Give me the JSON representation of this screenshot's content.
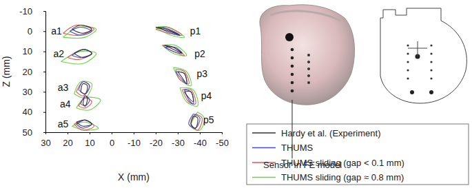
{
  "chart_data": {
    "type": "line",
    "x_label": "X (mm)",
    "y_label": "Z (mm)",
    "xlim": [
      30,
      -50
    ],
    "xticks": [
      30,
      20,
      10,
      0,
      -10,
      -20,
      -30,
      -40,
      -50
    ],
    "ylim": [
      -10,
      50
    ],
    "yticks": [
      -10,
      0,
      10,
      20,
      30,
      40,
      50
    ],
    "grid": false,
    "legend": "lower right",
    "series": [
      {
        "name": "Hardy et al. (Experiment)",
        "color": "#333333",
        "x": [
          18,
          14,
          9,
          13,
          18,
          null,
          17,
          12,
          9,
          13,
          17,
          null,
          14,
          13,
          11,
          12,
          14,
          null,
          13,
          12,
          11,
          12,
          13,
          null,
          16,
          12,
          9,
          13,
          16,
          null,
          -20,
          -25,
          -31,
          -26,
          -20,
          null,
          -24,
          -28,
          -32,
          -28,
          -24,
          null,
          -30,
          -33,
          -34,
          -32,
          -30,
          null,
          -33,
          -36,
          -37,
          -35,
          -33,
          null,
          -37,
          -39,
          -38,
          -36,
          -37
        ],
        "values": [
          -1,
          -3,
          -1,
          1,
          -1,
          null,
          11,
          9,
          11,
          13,
          11,
          null,
          30,
          26,
          27,
          31,
          30,
          null,
          36,
          32,
          33,
          37,
          36,
          null,
          45,
          44,
          46,
          47,
          45,
          null,
          -2,
          -1,
          2,
          0,
          -2,
          null,
          7,
          8,
          11,
          9,
          7,
          null,
          20,
          21,
          26,
          23,
          20,
          null,
          30,
          30,
          35,
          33,
          30,
          null,
          42,
          43,
          48,
          46,
          42
        ]
      },
      {
        "name": "THUMS",
        "color": "#4b4bd6",
        "x": [
          19,
          14,
          9,
          14,
          19,
          null,
          18,
          13,
          9,
          14,
          18,
          null,
          15,
          13,
          10,
          12,
          15,
          null,
          14,
          12,
          10,
          12,
          14,
          null,
          16,
          12,
          9,
          13,
          16,
          null,
          -21,
          -26,
          -31,
          -27,
          -21,
          null,
          -24,
          -29,
          -32,
          -28,
          -24,
          null,
          -29,
          -33,
          -34,
          -32,
          -29,
          null,
          -33,
          -36,
          -37,
          -35,
          -33,
          null,
          -37,
          -40,
          -38,
          -35,
          -37
        ],
        "values": [
          0,
          -2,
          0,
          2,
          0,
          null,
          12,
          9,
          11,
          13,
          12,
          null,
          29,
          25,
          27,
          31,
          29,
          null,
          36,
          32,
          34,
          37,
          36,
          null,
          46,
          44,
          46,
          48,
          46,
          null,
          -2,
          -1,
          2,
          1,
          -2,
          null,
          8,
          8,
          11,
          10,
          8,
          null,
          20,
          21,
          26,
          24,
          20,
          null,
          29,
          30,
          36,
          34,
          29,
          null,
          41,
          43,
          48,
          46,
          41
        ]
      },
      {
        "name": "THUMS sliding (gap < 0.1 mm)",
        "color": "#e35252",
        "x": [
          22,
          16,
          8,
          15,
          22,
          null,
          20,
          13,
          9,
          15,
          20,
          null,
          16,
          13,
          10,
          13,
          16,
          null,
          15,
          12,
          9,
          12,
          15,
          null,
          17,
          12,
          8,
          13,
          17,
          null,
          -20,
          -25,
          -32,
          -26,
          -20,
          null,
          -23,
          -28,
          -33,
          -28,
          -23,
          null,
          -29,
          -33,
          -35,
          -31,
          -29,
          null,
          -32,
          -36,
          -38,
          -35,
          -32,
          null,
          -38,
          -41,
          -39,
          -36,
          -38
        ],
        "values": [
          1,
          -3,
          -1,
          2,
          1,
          null,
          13,
          9,
          11,
          14,
          13,
          null,
          30,
          25,
          27,
          32,
          30,
          null,
          37,
          33,
          35,
          38,
          37,
          null,
          46,
          44,
          47,
          49,
          46,
          null,
          -1,
          -2,
          2,
          1,
          -1,
          null,
          7,
          8,
          12,
          10,
          7,
          null,
          19,
          20,
          26,
          24,
          19,
          null,
          29,
          29,
          36,
          35,
          29,
          null,
          41,
          43,
          49,
          46,
          41
        ]
      },
      {
        "name": "THUMS sliding (gap ≈ 0.8 mm)",
        "color": "#66d444",
        "x": [
          22,
          15,
          7,
          12,
          22,
          null,
          23,
          14,
          7,
          13,
          23,
          null,
          17,
          14,
          9,
          12,
          17,
          null,
          16,
          12,
          5,
          10,
          16,
          null,
          18,
          12,
          6,
          12,
          18,
          null,
          -20,
          -26,
          -33,
          -27,
          -20,
          null,
          -23,
          -29,
          -34,
          -28,
          -23,
          null,
          -28,
          -34,
          -36,
          -31,
          -28,
          null,
          -31,
          -37,
          -39,
          -34,
          -31,
          null,
          -39,
          -42,
          -40,
          -36,
          -39
        ],
        "values": [
          3,
          -2,
          -1,
          3,
          3,
          null,
          15,
          10,
          11,
          16,
          15,
          null,
          31,
          25,
          26,
          33,
          31,
          null,
          38,
          33,
          34,
          39,
          38,
          null,
          47,
          45,
          48,
          49,
          47,
          null,
          -2,
          -2,
          3,
          2,
          -2,
          null,
          7,
          7,
          12,
          11,
          7,
          null,
          18,
          20,
          27,
          24,
          18,
          null,
          28,
          29,
          37,
          35,
          28,
          null,
          40,
          43,
          49,
          47,
          40
        ]
      }
    ],
    "annotations": [
      {
        "text": "a1",
        "x": 25,
        "z": 0
      },
      {
        "text": "a2",
        "x": 24,
        "z": 11
      },
      {
        "text": "a3",
        "x": 22,
        "z": 28
      },
      {
        "text": "a4",
        "x": 21,
        "z": 36
      },
      {
        "text": "a5",
        "x": 22,
        "z": 46
      },
      {
        "text": "p1",
        "x": -38,
        "z": 0
      },
      {
        "text": "p2",
        "x": -40,
        "z": 11
      },
      {
        "text": "p3",
        "x": -41,
        "z": 21
      },
      {
        "text": "p4",
        "x": -43,
        "z": 32
      },
      {
        "text": "p5",
        "x": -44,
        "z": 44
      }
    ]
  },
  "inset": {
    "label": "Sensor in FE model"
  }
}
